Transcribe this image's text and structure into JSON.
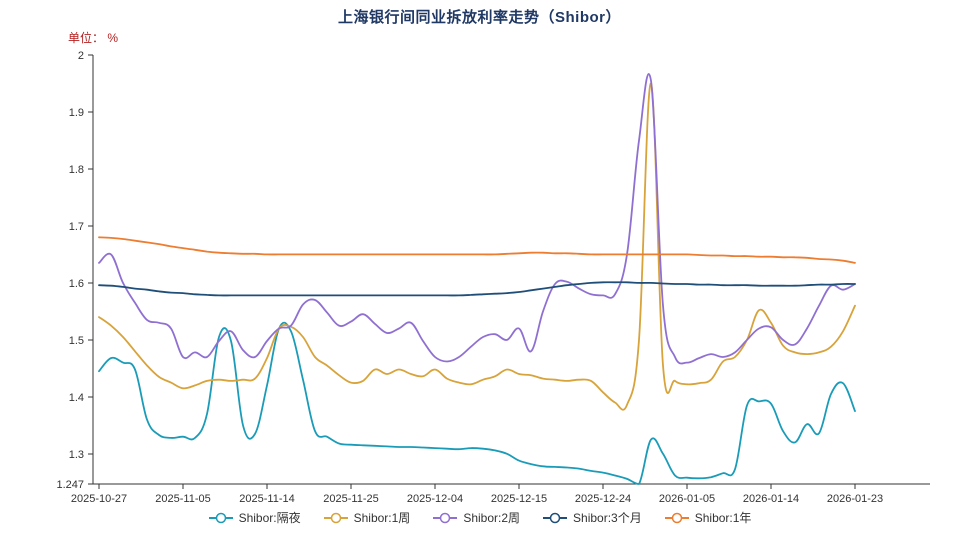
{
  "colors": {
    "title": "#1f3864",
    "unit": "#b22222",
    "axis": "#333333",
    "text": "#333333",
    "legend_text": "#333333",
    "background": "#ffffff"
  },
  "chart_data": {
    "type": "line",
    "title": "上海银行间同业拆放利率走势（Shibor）",
    "unit": "单位： %",
    "xlabel": "",
    "ylabel": "%",
    "ylim": [
      1.247,
      2
    ],
    "y_ticks": [
      1.247,
      1.3,
      1.4,
      1.5,
      1.6,
      1.7,
      1.8,
      1.9,
      2
    ],
    "grid": false,
    "smooth": true,
    "legend_position": "bottom",
    "x_tick_labels": [
      "2025-10-27",
      "2025-11-05",
      "2025-11-14",
      "2025-11-25",
      "2025-12-04",
      "2025-12-15",
      "2025-12-24",
      "2026-01-05",
      "2026-01-14",
      "2026-01-23"
    ],
    "x": [
      "2025-10-27",
      "2025-10-28",
      "2025-10-29",
      "2025-10-30",
      "2025-10-31",
      "2025-11-03",
      "2025-11-04",
      "2025-11-05",
      "2025-11-06",
      "2025-11-07",
      "2025-11-10",
      "2025-11-11",
      "2025-11-12",
      "2025-11-13",
      "2025-11-14",
      "2025-11-17",
      "2025-11-18",
      "2025-11-19",
      "2025-11-20",
      "2025-11-21",
      "2025-11-24",
      "2025-11-25",
      "2025-11-26",
      "2025-11-27",
      "2025-11-28",
      "2025-12-01",
      "2025-12-02",
      "2025-12-03",
      "2025-12-04",
      "2025-12-05",
      "2025-12-08",
      "2025-12-09",
      "2025-12-10",
      "2025-12-11",
      "2025-12-12",
      "2025-12-15",
      "2025-12-16",
      "2025-12-17",
      "2025-12-18",
      "2025-12-19",
      "2025-12-22",
      "2025-12-23",
      "2025-12-24",
      "2025-12-25",
      "2025-12-26",
      "2025-12-29",
      "2025-12-30",
      "2025-12-31",
      "2026-01-02",
      "2026-01-05",
      "2026-01-06",
      "2026-01-07",
      "2026-01-08",
      "2026-01-09",
      "2026-01-12",
      "2026-01-13",
      "2026-01-14",
      "2026-01-15",
      "2026-01-16",
      "2026-01-19",
      "2026-01-20",
      "2026-01-21",
      "2026-01-22",
      "2026-01-23"
    ],
    "series": [
      {
        "name": "Shibor:隔夜",
        "color": "#1a9cb8",
        "values": [
          1.445,
          1.468,
          1.46,
          1.448,
          1.36,
          1.333,
          1.328,
          1.33,
          1.328,
          1.37,
          1.505,
          1.498,
          1.35,
          1.335,
          1.42,
          1.52,
          1.515,
          1.43,
          1.34,
          1.33,
          1.318,
          1.316,
          1.315,
          1.314,
          1.313,
          1.312,
          1.312,
          1.311,
          1.31,
          1.309,
          1.308,
          1.31,
          1.309,
          1.306,
          1.3,
          1.288,
          1.282,
          1.278,
          1.277,
          1.276,
          1.274,
          1.27,
          1.267,
          1.262,
          1.256,
          1.247,
          1.325,
          1.3,
          1.262,
          1.258,
          1.257,
          1.259,
          1.266,
          1.273,
          1.385,
          1.392,
          1.388,
          1.34,
          1.32,
          1.352,
          1.336,
          1.405,
          1.424,
          1.375
        ]
      },
      {
        "name": "Shibor:1周",
        "color": "#d8a33a",
        "values": [
          1.54,
          1.525,
          1.505,
          1.48,
          1.455,
          1.435,
          1.425,
          1.415,
          1.42,
          1.428,
          1.43,
          1.428,
          1.43,
          1.432,
          1.468,
          1.52,
          1.523,
          1.505,
          1.47,
          1.455,
          1.438,
          1.425,
          1.428,
          1.448,
          1.44,
          1.448,
          1.44,
          1.436,
          1.448,
          1.432,
          1.425,
          1.422,
          1.43,
          1.436,
          1.448,
          1.44,
          1.438,
          1.432,
          1.43,
          1.428,
          1.43,
          1.428,
          1.408,
          1.39,
          1.386,
          1.5,
          1.95,
          1.455,
          1.428,
          1.422,
          1.424,
          1.43,
          1.462,
          1.47,
          1.5,
          1.552,
          1.53,
          1.49,
          1.478,
          1.475,
          1.478,
          1.488,
          1.515,
          1.56
        ]
      },
      {
        "name": "Shibor:2周",
        "color": "#8f70d2",
        "values": [
          1.635,
          1.65,
          1.6,
          1.565,
          1.535,
          1.53,
          1.52,
          1.47,
          1.478,
          1.47,
          1.498,
          1.515,
          1.482,
          1.47,
          1.498,
          1.52,
          1.525,
          1.562,
          1.57,
          1.548,
          1.525,
          1.532,
          1.545,
          1.528,
          1.512,
          1.52,
          1.53,
          1.498,
          1.47,
          1.462,
          1.47,
          1.488,
          1.505,
          1.51,
          1.5,
          1.52,
          1.48,
          1.55,
          1.598,
          1.602,
          1.59,
          1.58,
          1.578,
          1.58,
          1.65,
          1.85,
          1.955,
          1.56,
          1.47,
          1.46,
          1.468,
          1.475,
          1.47,
          1.478,
          1.5,
          1.52,
          1.522,
          1.5,
          1.492,
          1.52,
          1.56,
          1.595,
          1.588,
          1.598
        ]
      },
      {
        "name": "Shibor:3个月",
        "color": "#1f4e79",
        "values": [
          1.596,
          1.595,
          1.593,
          1.59,
          1.588,
          1.585,
          1.583,
          1.582,
          1.58,
          1.579,
          1.578,
          1.578,
          1.578,
          1.578,
          1.578,
          1.578,
          1.578,
          1.578,
          1.578,
          1.578,
          1.578,
          1.578,
          1.578,
          1.578,
          1.578,
          1.578,
          1.578,
          1.578,
          1.578,
          1.578,
          1.578,
          1.579,
          1.58,
          1.581,
          1.582,
          1.584,
          1.587,
          1.59,
          1.593,
          1.596,
          1.598,
          1.6,
          1.601,
          1.601,
          1.601,
          1.6,
          1.6,
          1.599,
          1.598,
          1.598,
          1.597,
          1.597,
          1.596,
          1.596,
          1.596,
          1.595,
          1.595,
          1.595,
          1.595,
          1.596,
          1.597,
          1.597,
          1.598,
          1.598
        ]
      },
      {
        "name": "Shibor:1年",
        "color": "#ed7d31",
        "values": [
          1.68,
          1.679,
          1.677,
          1.674,
          1.671,
          1.668,
          1.664,
          1.661,
          1.658,
          1.655,
          1.653,
          1.652,
          1.651,
          1.651,
          1.65,
          1.65,
          1.65,
          1.65,
          1.65,
          1.65,
          1.65,
          1.65,
          1.65,
          1.65,
          1.65,
          1.65,
          1.65,
          1.65,
          1.65,
          1.65,
          1.65,
          1.65,
          1.65,
          1.65,
          1.651,
          1.652,
          1.653,
          1.653,
          1.652,
          1.652,
          1.651,
          1.65,
          1.65,
          1.65,
          1.65,
          1.65,
          1.65,
          1.65,
          1.65,
          1.65,
          1.649,
          1.648,
          1.648,
          1.647,
          1.647,
          1.646,
          1.646,
          1.645,
          1.645,
          1.644,
          1.642,
          1.641,
          1.639,
          1.635
        ]
      }
    ]
  }
}
